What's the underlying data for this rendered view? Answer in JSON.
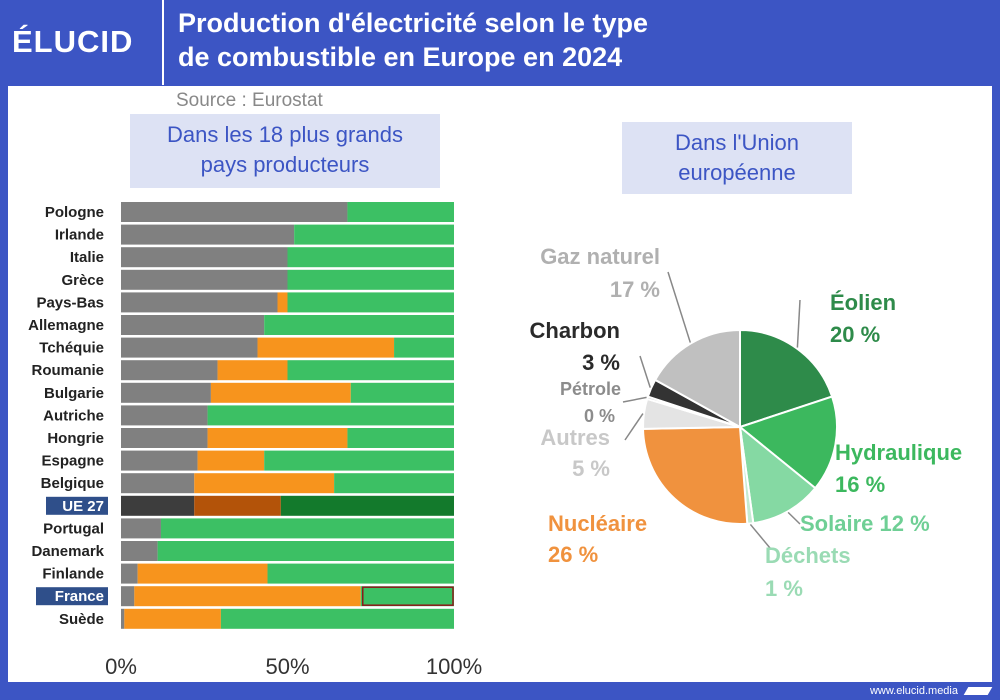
{
  "header": {
    "logo": "ÉLUCID",
    "title_line1": "Production d'électricité selon le type",
    "title_line2": "de combustible en Europe en 2024",
    "source": "Source : Eurostat"
  },
  "footer": {
    "url": "www.elucid.media"
  },
  "colors": {
    "blue": "#3c55c4",
    "charbon_light": "#808080",
    "nucleaire": "#f7941d",
    "renouvelable": "#3cc064",
    "ue_charbon": "#3d3d3d",
    "ue_nucleaire": "#b35309",
    "ue_renouvelable": "#137a2c"
  },
  "chart_data": [
    {
      "type": "bar",
      "orientation": "horizontal",
      "stacked": true,
      "subtitle_line1": "Dans les 18 plus grands",
      "subtitle_line2": "pays producteurs",
      "categories": [
        "Pologne",
        "Irlande",
        "Italie",
        "Grèce",
        "Pays-Bas",
        "Allemagne",
        "Tchéquie",
        "Roumanie",
        "Bulgarie",
        "Autriche",
        "Hongrie",
        "Espagne",
        "Belgique",
        "UE 27",
        "Portugal",
        "Danemark",
        "Finlande",
        "France",
        "Suède"
      ],
      "highlighted": [
        "UE 27",
        "France"
      ],
      "series": [
        {
          "values": [
            68,
            52,
            50,
            50,
            47,
            43,
            41,
            29,
            27,
            26,
            26,
            23,
            22,
            22,
            12,
            11,
            5,
            4,
            1
          ]
        },
        {
          "values": [
            0,
            0,
            0,
            0,
            3,
            0,
            41,
            21,
            42,
            0,
            42,
            20,
            42,
            26,
            0,
            0,
            39,
            68,
            29
          ]
        },
        {
          "values": [
            32,
            48,
            50,
            50,
            50,
            57,
            18,
            50,
            31,
            74,
            32,
            57,
            36,
            52,
            88,
            89,
            56,
            28,
            70
          ]
        }
      ],
      "xticks": [
        "0%",
        "50%",
        "100%"
      ],
      "xlim": [
        0,
        100
      ]
    },
    {
      "type": "pie",
      "subtitle_line1": "Dans l'Union",
      "subtitle_line2": "européenne",
      "slices": [
        {
          "label": "Éolien",
          "value": 20,
          "value_label": "20 %",
          "color": "#2e8b4a"
        },
        {
          "label": "Hydraulique",
          "value": 16,
          "value_label": "16 %",
          "color": "#3cb85e"
        },
        {
          "label": "Solaire",
          "value": 12,
          "value_label": "12 %",
          "color": "#85d9a3"
        },
        {
          "label": "Déchets",
          "value": 1,
          "value_label": "1 %",
          "color": "#c5ebd3"
        },
        {
          "label": "Nucléaire",
          "value": 26,
          "value_label": "26 %",
          "color": "#f0923e"
        },
        {
          "label": "Autres",
          "value": 5,
          "value_label": "5 %",
          "color": "#e4e4e4"
        },
        {
          "label": "Pétrole",
          "value": 0.4,
          "value_label": "0 %",
          "color": "#a8a8a8"
        },
        {
          "label": "Charbon",
          "value": 3,
          "value_label": "3 %",
          "color": "#333333"
        },
        {
          "label": "Gaz naturel",
          "value": 17,
          "value_label": "17 %",
          "color": "#c0c0c0"
        }
      ]
    }
  ]
}
